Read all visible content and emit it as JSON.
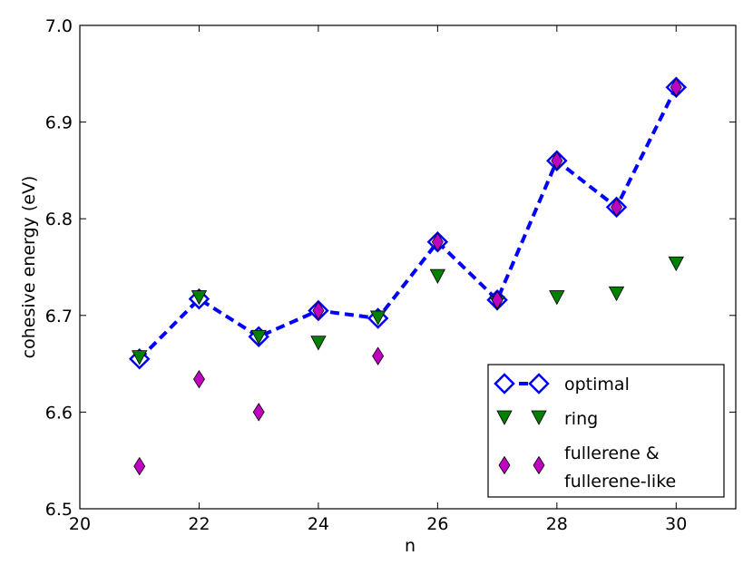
{
  "chart_data": {
    "type": "scatter",
    "title": "",
    "xlabel": "n",
    "ylabel": "cohesive energy (eV)",
    "xlim": [
      20,
      31
    ],
    "ylim": [
      6.5,
      7.0
    ],
    "xticks": [
      "20",
      "22",
      "24",
      "26",
      "28",
      "30"
    ],
    "yticks": [
      "6.5",
      "6.6",
      "6.7",
      "6.8",
      "6.9",
      "7.0"
    ],
    "grid": false,
    "legend_position": "lower-right",
    "series": [
      {
        "name": "optimal",
        "style": "dashed-line-open-diamond",
        "color": "#0000ff",
        "x": [
          21,
          22,
          23,
          24,
          25,
          26,
          27,
          28,
          29,
          30
        ],
        "y": [
          6.655,
          6.717,
          6.678,
          6.705,
          6.697,
          6.776,
          6.716,
          6.86,
          6.812,
          6.936
        ]
      },
      {
        "name": "ring",
        "style": "down-triangle",
        "color": "#008000",
        "x": [
          21,
          22,
          23,
          24,
          25,
          26,
          27,
          28,
          29,
          30
        ],
        "y": [
          6.657,
          6.719,
          6.678,
          6.672,
          6.698,
          6.741,
          6.713,
          6.719,
          6.723,
          6.754
        ]
      },
      {
        "name": "fullerene & fullerene-like",
        "name_lines": [
          "fullerene &",
          "fullerene-like"
        ],
        "style": "filled-diamond",
        "color": "#c000c0",
        "x": [
          21,
          22,
          23,
          24,
          25,
          26,
          27,
          28,
          29,
          30
        ],
        "y": [
          6.544,
          6.634,
          6.6,
          6.705,
          6.658,
          6.776,
          6.716,
          6.86,
          6.812,
          6.936
        ]
      }
    ]
  }
}
